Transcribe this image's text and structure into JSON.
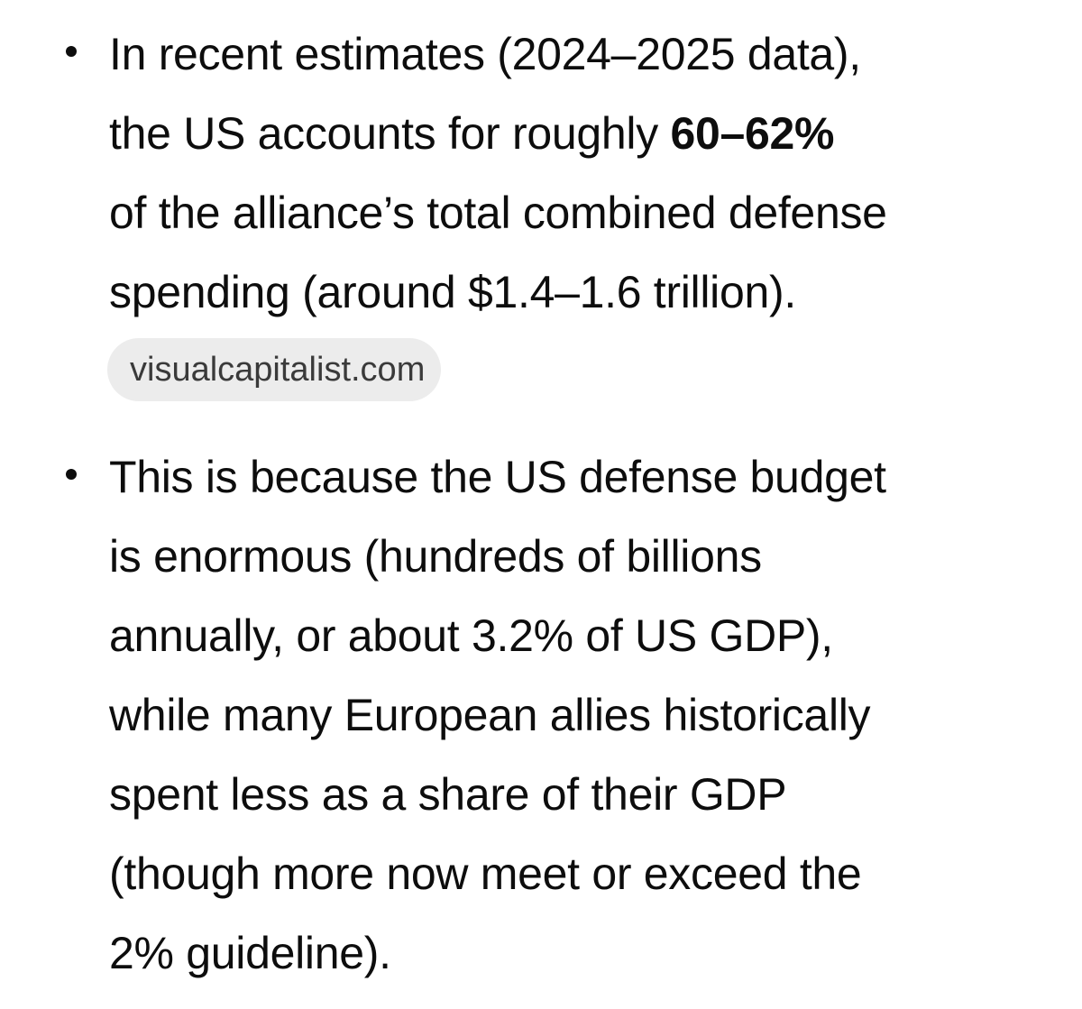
{
  "bullets": [
    {
      "lines": [
        "In recent estimates (2024–2025 data),",
        "the US accounts for roughly ",
        "of the alliance’s total combined defense",
        "spending (around $1.4–1.6 trillion)."
      ],
      "bold": "60–62%",
      "source": "visualcapitalist.com"
    },
    {
      "lines": [
        "This is because the US defense budget",
        "is enormous (hundreds of billions",
        "annually, or about 3.2% of US GDP),",
        "while many European allies historically",
        "spent less as a share of their GDP",
        "(though more now meet or exceed the",
        "2% guideline)."
      ]
    }
  ]
}
